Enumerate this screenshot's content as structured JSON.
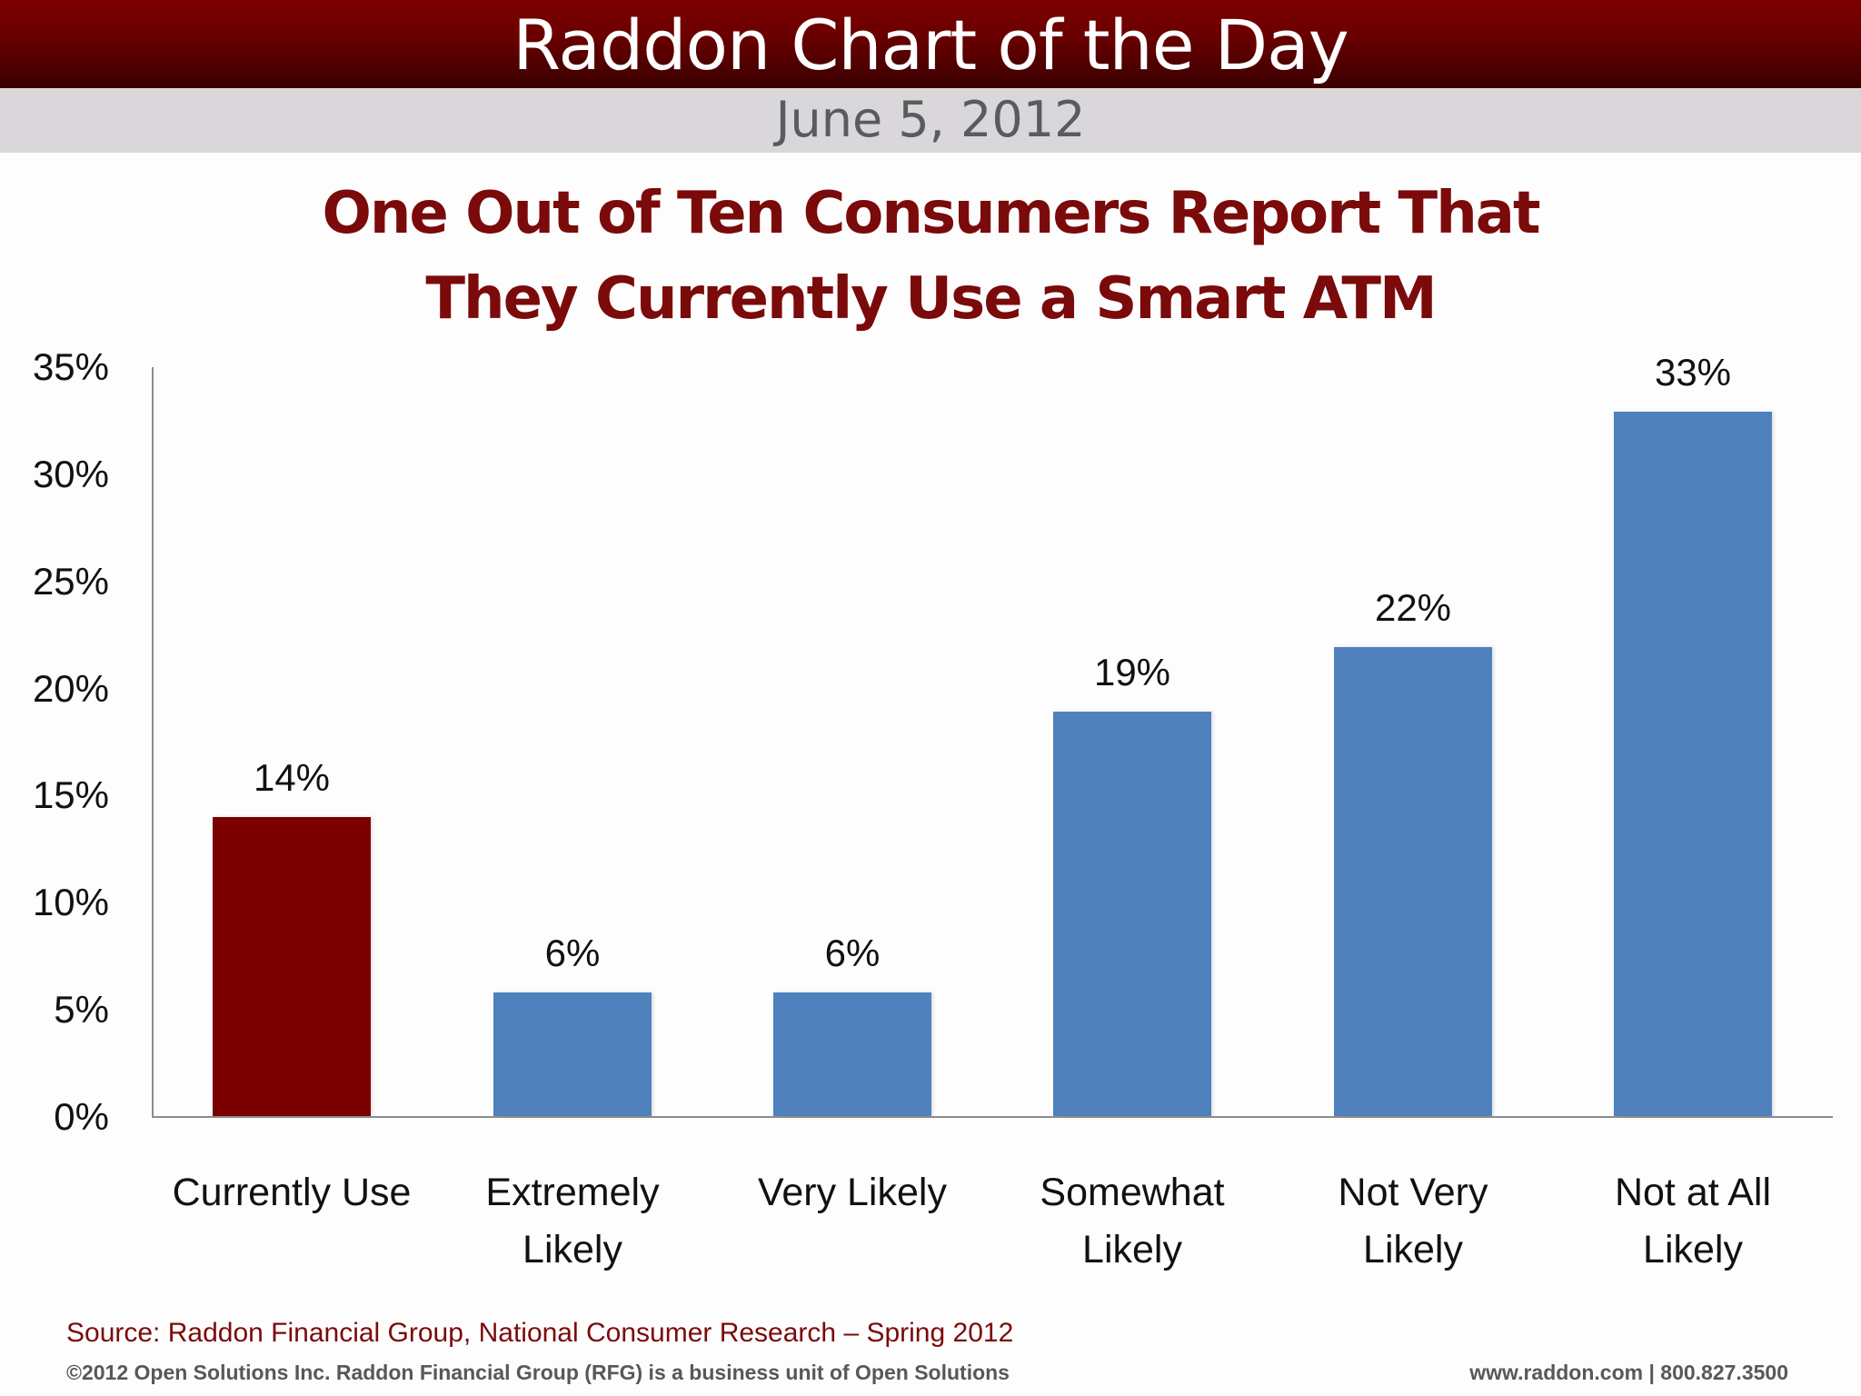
{
  "header": {
    "title": "Raddon Chart of the Day",
    "date": "June 5, 2012"
  },
  "chart": {
    "title_line1": "One Out of Ten Consumers Report That",
    "title_line2": "They Currently Use a Smart ATM",
    "y_ticks": [
      "35%",
      "30%",
      "25%",
      "20%",
      "15%",
      "10%",
      "5%",
      "0%"
    ],
    "bars": [
      {
        "label": "Currently Use",
        "value_label": "14%",
        "color": "#7b0000"
      },
      {
        "label": "Extremely\nLikely",
        "value_label": "6%",
        "color": "#4f81bd"
      },
      {
        "label": "Very Likely",
        "value_label": "6%",
        "color": "#4f81bd"
      },
      {
        "label": "Somewhat\nLikely",
        "value_label": "19%",
        "color": "#4f81bd"
      },
      {
        "label": "Not Very\nLikely",
        "value_label": "22%",
        "color": "#4f81bd"
      },
      {
        "label": "Not at All\nLikely",
        "value_label": "33%",
        "color": "#4f81bd"
      }
    ]
  },
  "footer": {
    "source": "Source: Raddon Financial Group, National Consumer Research – Spring 2012",
    "copyright": "©2012 Open Solutions Inc.  Raddon Financial Group (RFG) is a business unit of Open Solutions",
    "contact": "www.raddon.com  |  800.827.3500"
  },
  "chart_data": {
    "type": "bar",
    "title": "One Out of Ten Consumers Report That They Currently Use a Smart ATM",
    "subtitle": "Raddon Chart of the Day — June 5, 2012",
    "categories": [
      "Currently Use",
      "Extremely Likely",
      "Very Likely",
      "Somewhat Likely",
      "Not Very Likely",
      "Not at All Likely"
    ],
    "values": [
      14,
      6,
      6,
      19,
      22,
      33
    ],
    "value_labels": [
      "14%",
      "6%",
      "6%",
      "19%",
      "22%",
      "33%"
    ],
    "colors": [
      "#7b0000",
      "#4f81bd",
      "#4f81bd",
      "#4f81bd",
      "#4f81bd",
      "#4f81bd"
    ],
    "xlabel": "",
    "ylabel": "",
    "ylim": [
      0,
      35
    ],
    "yticks": [
      0,
      5,
      10,
      15,
      20,
      25,
      30,
      35
    ],
    "ytick_format": "percent",
    "grid": false,
    "legend": "none",
    "source": "Raddon Financial Group, National Consumer Research – Spring 2012"
  }
}
